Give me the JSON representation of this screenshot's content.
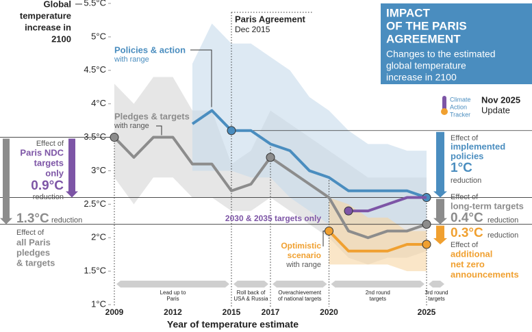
{
  "chart_data": {
    "type": "line",
    "title": [
      "IMPACT",
      "OF THE PARIS",
      "AGREEMENT"
    ],
    "subtitle": [
      "Changes to the estimated",
      "global temperature",
      "increase in 2100"
    ],
    "logo": [
      "Climate",
      "Action",
      "Tracker"
    ],
    "update": [
      "Nov 2025",
      "Update"
    ],
    "x_label": "Year of temperature estimate",
    "y_label": [
      "Global",
      "temperature",
      "increase in",
      "2100"
    ],
    "x": [
      2009,
      2010,
      2011,
      2012,
      2013,
      2014,
      2015,
      2016,
      2017,
      2018,
      2019,
      2020,
      2021,
      2022,
      2023,
      2024,
      2025
    ],
    "xlim": [
      2009,
      2025
    ],
    "xticks": [
      2009,
      2012,
      2015,
      2017,
      2020,
      2025
    ],
    "ylim": [
      1,
      5.5
    ],
    "yticks": [
      {
        "value": 1,
        "label": "1°C"
      },
      {
        "value": 1.5,
        "label": "1.5°C"
      },
      {
        "value": 2,
        "label": "2°C"
      },
      {
        "value": 2.5,
        "label": "2.5°C"
      },
      {
        "value": 3,
        "label": "3°C"
      },
      {
        "value": 3.5,
        "label": "3.5°C"
      },
      {
        "value": 4,
        "label": "4°C"
      },
      {
        "value": 4.5,
        "label": "4.5°C"
      },
      {
        "value": 5,
        "label": "5°C"
      },
      {
        "value": 5.5,
        "label": "5.5°C"
      }
    ],
    "series": [
      {
        "name": "Pledges & targets",
        "sublabel": "with range",
        "color": "#8c8c8c",
        "band_color": "#d6d6d6",
        "values": [
          3.5,
          3.2,
          3.5,
          3.5,
          3.1,
          3.1,
          2.7,
          2.8,
          3.2,
          3.0,
          2.8,
          2.6,
          2.1,
          2.0,
          2.1,
          2.1,
          2.2
        ],
        "upper": [
          4.3,
          4.0,
          4.4,
          4.4,
          3.9,
          3.9,
          3.1,
          3.3,
          3.9,
          3.7,
          3.5,
          3.3,
          3.1,
          2.9,
          2.9,
          2.9,
          2.9
        ],
        "lower": [
          2.9,
          2.5,
          2.9,
          2.9,
          2.6,
          2.6,
          2.4,
          2.4,
          2.6,
          2.4,
          2.2,
          2.0,
          1.7,
          1.6,
          1.7,
          1.7,
          1.8
        ],
        "highlight_x": [
          2009,
          2017,
          2025
        ]
      },
      {
        "name": "Policies & action",
        "sublabel": "with range",
        "color": "#4a8dbf",
        "band_color": "#c6dbeb",
        "values": [
          null,
          null,
          null,
          null,
          3.7,
          3.9,
          3.6,
          3.6,
          3.4,
          3.3,
          3.0,
          2.9,
          2.7,
          2.7,
          2.7,
          2.7,
          2.6
        ],
        "upper": [
          null,
          null,
          null,
          null,
          4.6,
          5.2,
          4.9,
          4.9,
          4.7,
          4.5,
          4.1,
          3.9,
          3.6,
          3.4,
          3.4,
          3.3,
          3.3
        ],
        "lower": [
          null,
          null,
          null,
          null,
          3.0,
          3.0,
          3.0,
          2.9,
          2.9,
          2.6,
          2.4,
          2.2,
          2.2,
          2.2,
          2.2,
          2.2,
          2.2
        ],
        "highlight_x": [
          2015,
          2025
        ]
      },
      {
        "name": "2030 & 2035 targets only",
        "color": "#7d55a6",
        "values": [
          null,
          null,
          null,
          null,
          null,
          null,
          null,
          null,
          null,
          null,
          null,
          null,
          2.4,
          2.4,
          2.5,
          2.6,
          2.6
        ],
        "highlight_x": [
          2021
        ]
      },
      {
        "name": "Optimistic scenario",
        "sublabel": "with range",
        "color": "#f0a030",
        "band_color": "#f7d6a4",
        "values": [
          null,
          null,
          null,
          null,
          null,
          null,
          null,
          null,
          null,
          null,
          null,
          2.1,
          1.8,
          1.8,
          1.8,
          1.9,
          1.9
        ],
        "upper": [
          null,
          null,
          null,
          null,
          null,
          null,
          null,
          null,
          null,
          null,
          null,
          2.6,
          2.5,
          2.3,
          2.3,
          2.1,
          2.1
        ],
        "lower": [
          null,
          null,
          null,
          null,
          null,
          null,
          null,
          null,
          null,
          null,
          null,
          1.6,
          1.6,
          1.6,
          1.6,
          1.5,
          1.5
        ],
        "highlight_x": [
          2020,
          2025
        ]
      }
    ],
    "paris": {
      "x": 2015,
      "text": [
        "Paris Agreement",
        "Dec 2015"
      ]
    },
    "period_bounds": [
      2009,
      2015,
      2017,
      2020,
      2025
    ],
    "periods": [
      [
        "Lead up to",
        "Paris"
      ],
      [
        "Roll back of",
        "USA & Russia"
      ],
      [
        "Overachievement",
        "of national targets"
      ],
      [
        "2nd round",
        "targets"
      ],
      [
        "3rd round",
        "targets"
      ]
    ],
    "left_notes": {
      "ndc": [
        {
          "text": "Effect of",
          "color": "#555555"
        },
        {
          "text": "Paris NDC",
          "color": "#7d55a6"
        },
        {
          "text": "targets",
          "color": "#7d55a6"
        },
        {
          "text": "only",
          "color": "#7d55a6"
        },
        {
          "text": "0.9°C",
          "color": "#7d55a6"
        },
        {
          "text": "reduction",
          "color": "#555555"
        }
      ],
      "all": [
        {
          "text": "1.3°C",
          "color": "#8c8c8c"
        },
        {
          "text": "reduction",
          "color": "#555555"
        },
        {
          "text": "Effect of",
          "color": "#555555"
        },
        {
          "text": "all Paris",
          "color": "#8c8c8c"
        },
        {
          "text": "pledges",
          "color": "#8c8c8c"
        },
        {
          "text": "& targets",
          "color": "#8c8c8c"
        }
      ]
    },
    "right_notes": [
      {
        "text": "Effect of",
        "color": "#555555"
      },
      {
        "text": "implemented",
        "color": "#4a8dbf"
      },
      {
        "text": "policies",
        "color": "#4a8dbf"
      },
      {
        "text": "1°C",
        "color": "#4a8dbf"
      },
      {
        "text": "reduction",
        "color": "#555555"
      },
      {
        "text": "Effect of",
        "color": "#555555"
      },
      {
        "text": "long-term targets",
        "color": "#8c8c8c"
      },
      {
        "text": "0.4°C",
        "color": "#8c8c8c"
      },
      {
        "text": "reduction",
        "color": "#555555"
      },
      {
        "text": "0.3°C",
        "color": "#f0a030"
      },
      {
        "text": "reduction",
        "color": "#555555"
      },
      {
        "text": "Effect of",
        "color": "#555555"
      },
      {
        "text": "additional",
        "color": "#f0a030"
      },
      {
        "text": "net zero",
        "color": "#f0a030"
      },
      {
        "text": "announcements",
        "color": "#f0a030"
      }
    ]
  }
}
